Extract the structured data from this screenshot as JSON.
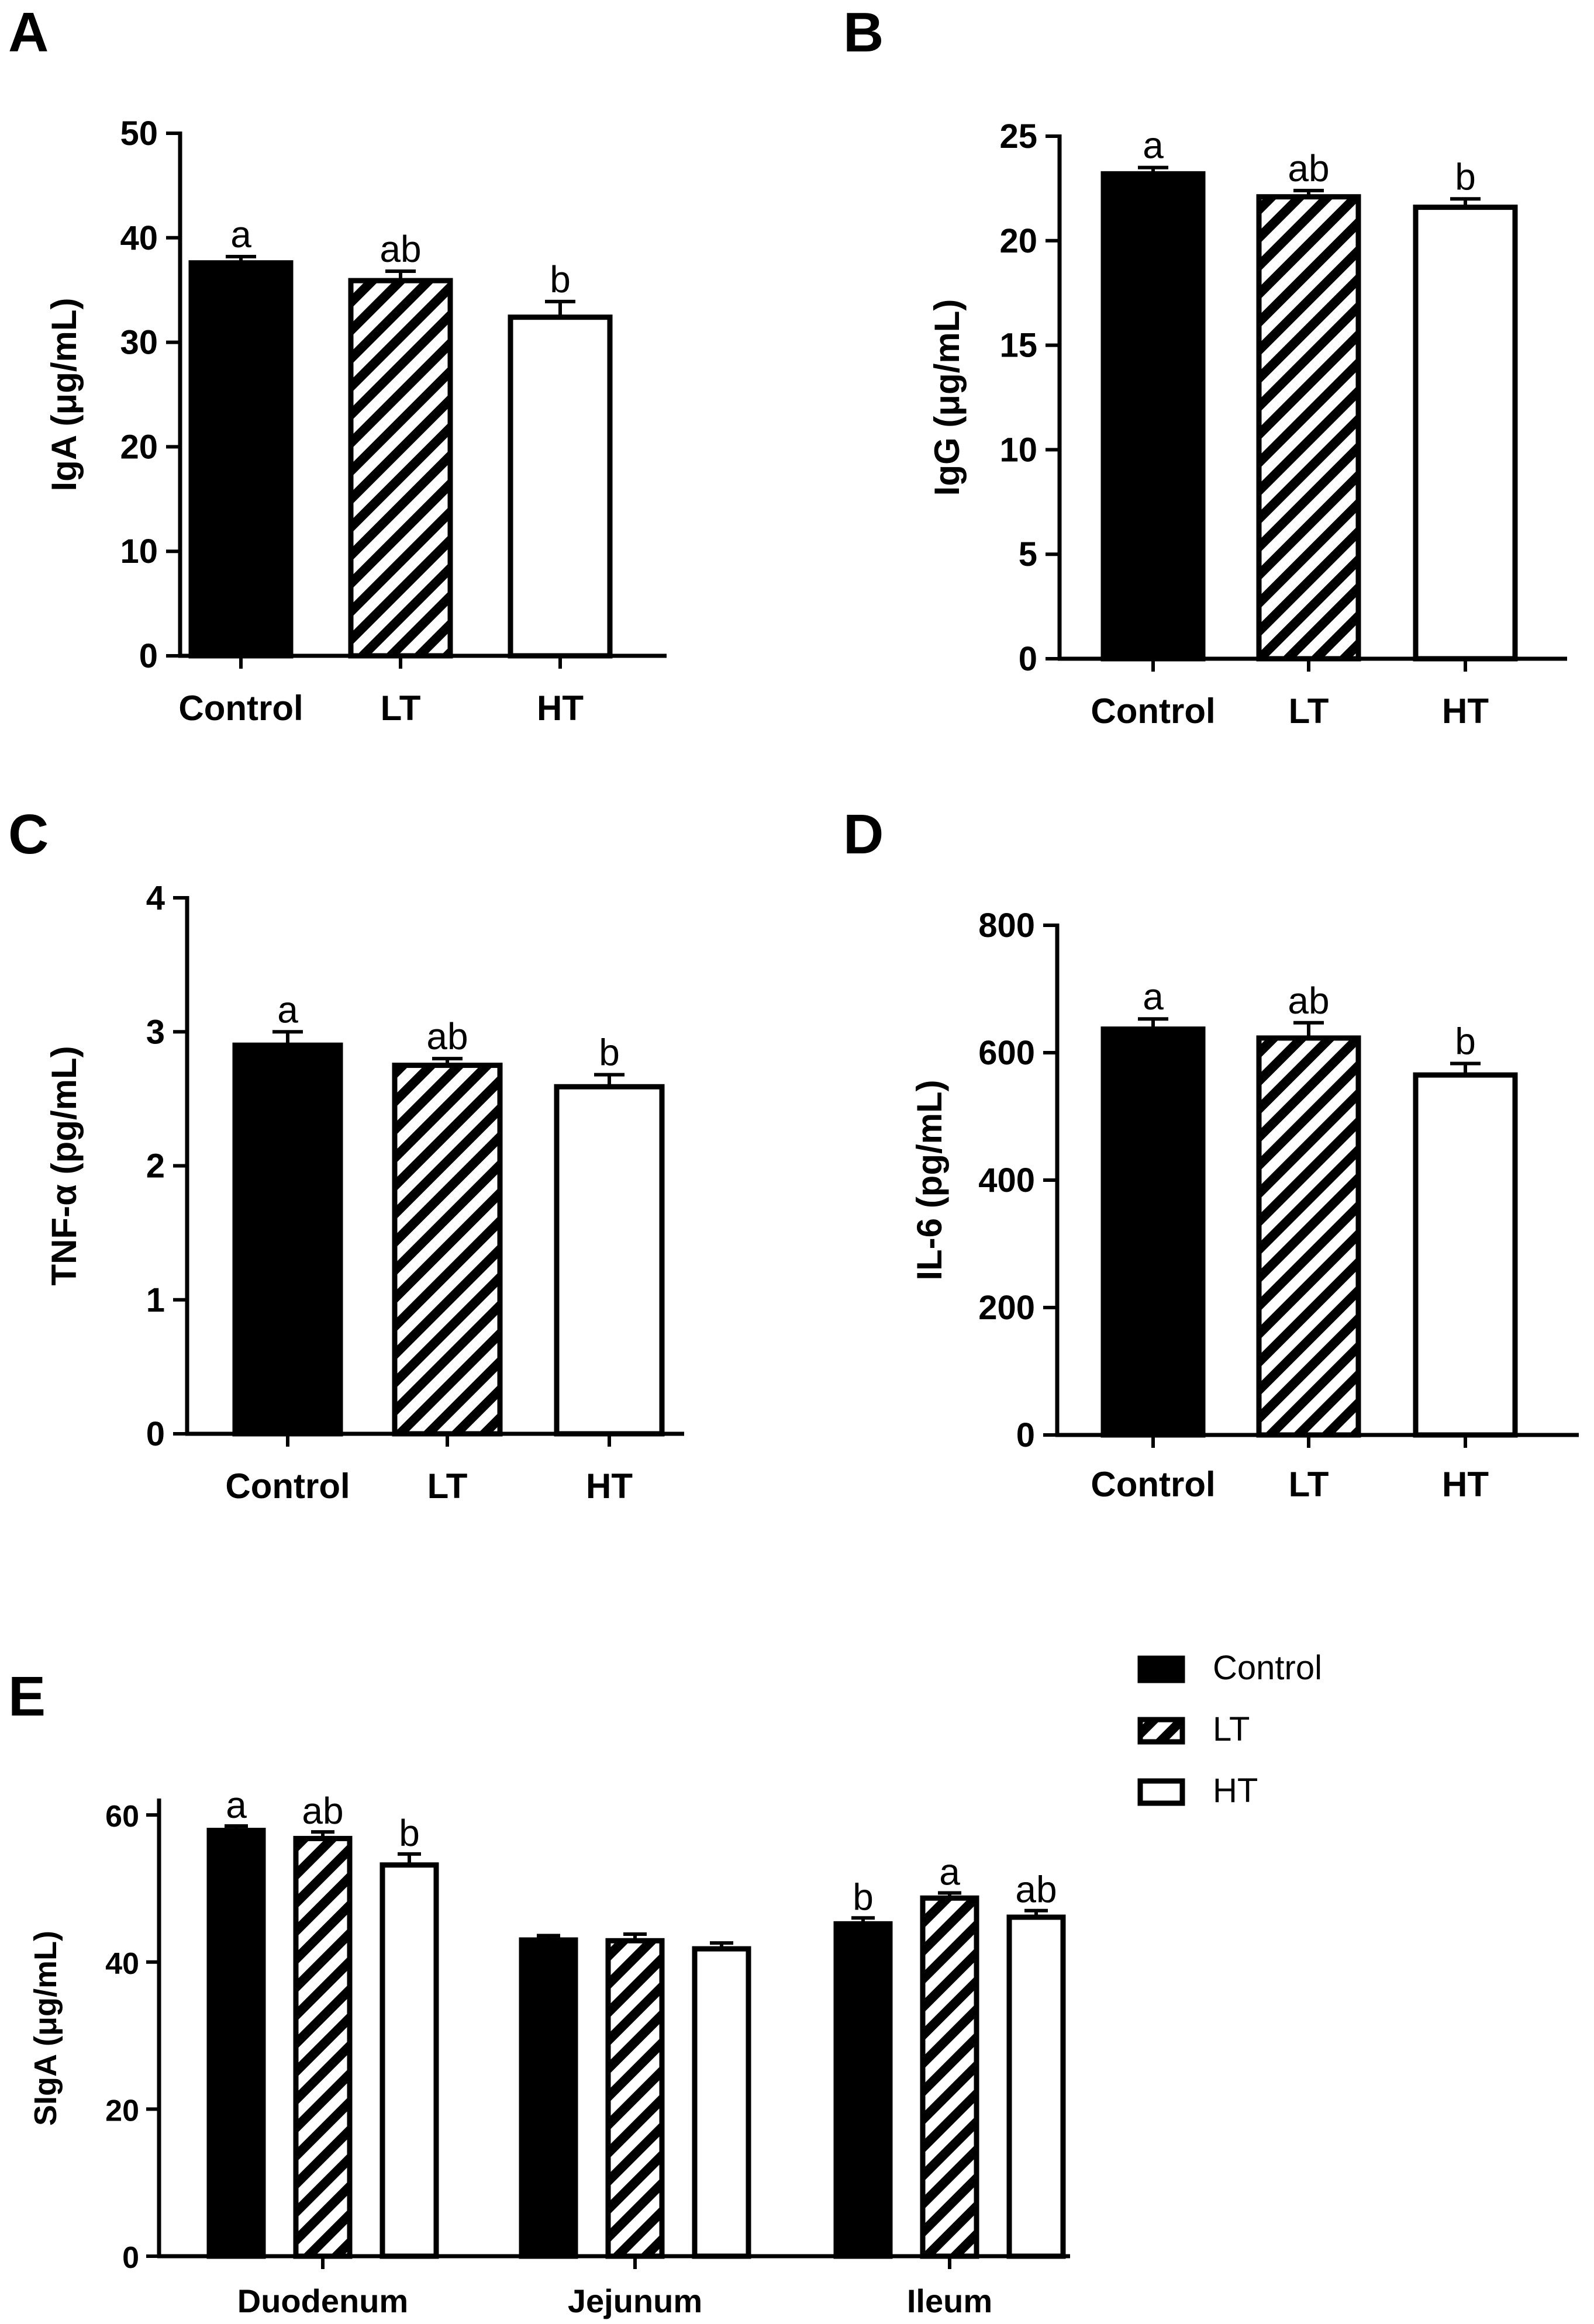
{
  "colors": {
    "control": "#000000",
    "lt_pattern": "#000000",
    "ht": "#ffffff",
    "stroke": "#000000"
  },
  "legend": {
    "items": [
      "Control",
      "LT",
      "HT"
    ]
  },
  "chart_data": [
    {
      "panel": "A",
      "type": "bar",
      "categories": [
        "Control",
        "LT",
        "HT"
      ],
      "values": [
        37.6,
        35.9,
        32.4
      ],
      "errors": [
        0.6,
        0.9,
        1.5
      ],
      "significance": [
        "a",
        "ab",
        "b"
      ],
      "ylabel": "IgA (μg/mL)",
      "ylim": [
        0,
        50
      ],
      "yticks": [
        0,
        10,
        20,
        30,
        40,
        50
      ]
    },
    {
      "panel": "B",
      "type": "bar",
      "categories": [
        "Control",
        "LT",
        "HT"
      ],
      "values": [
        23.2,
        22.1,
        21.6
      ],
      "errors": [
        0.3,
        0.3,
        0.4
      ],
      "significance": [
        "a",
        "ab",
        "b"
      ],
      "ylabel": "IgG (μg/mL)",
      "ylim": [
        0,
        25
      ],
      "yticks": [
        0,
        5,
        10,
        15,
        20,
        25
      ]
    },
    {
      "panel": "C",
      "type": "bar",
      "categories": [
        "Control",
        "LT",
        "HT"
      ],
      "values": [
        2.9,
        2.75,
        2.59
      ],
      "errors": [
        0.1,
        0.05,
        0.09
      ],
      "significance": [
        "a",
        "ab",
        "b"
      ],
      "ylabel": "TNF-α (pg/mL)",
      "ylim": [
        0,
        4
      ],
      "yticks": [
        0,
        1,
        2,
        3,
        4
      ]
    },
    {
      "panel": "D",
      "type": "bar",
      "categories": [
        "Control",
        "LT",
        "HT"
      ],
      "values": [
        637,
        623,
        565
      ],
      "errors": [
        16,
        24,
        18
      ],
      "significance": [
        "a",
        "ab",
        "b"
      ],
      "ylabel": "IL-6 (pg/mL)",
      "ylim": [
        0,
        800
      ],
      "yticks": [
        0,
        200,
        400,
        600,
        800
      ]
    },
    {
      "panel": "E",
      "type": "bar",
      "categories": [
        "Duodenum",
        "Jejunum",
        "Ileum"
      ],
      "series": [
        {
          "name": "Control",
          "values": [
            57.9,
            43.0,
            45.2
          ],
          "errors": [
            0.6,
            0.6,
            0.8
          ],
          "significance": [
            "a",
            "",
            "b"
          ]
        },
        {
          "name": "LT",
          "values": [
            56.8,
            42.9,
            48.7
          ],
          "errors": [
            0.9,
            0.9,
            0.7
          ],
          "significance": [
            "ab",
            "",
            "a"
          ]
        },
        {
          "name": "HT",
          "values": [
            53.2,
            41.8,
            46.1
          ],
          "errors": [
            1.5,
            0.8,
            0.9
          ],
          "significance": [
            "b",
            "",
            "ab"
          ]
        }
      ],
      "ylabel": "SIgA (μg/mL)",
      "ylim": [
        0,
        62
      ],
      "yticks": [
        0,
        20,
        40,
        60
      ]
    }
  ]
}
